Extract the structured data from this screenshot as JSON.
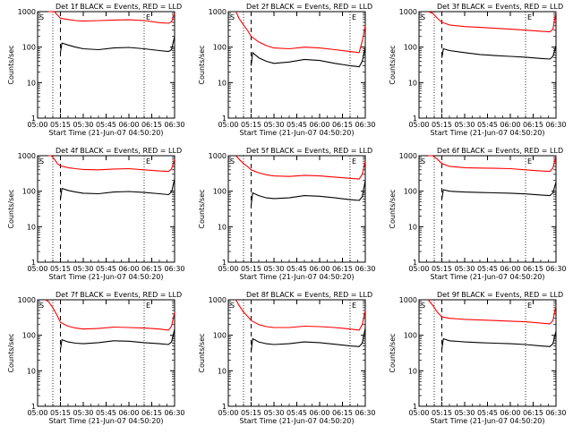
{
  "chart_data": [
    {
      "type": "line",
      "title": "Det 1f BLACK = Events, RED = LLD",
      "xlabel": "Start Time (21-Jun-07 04:50:20)",
      "ylabel": "Counts/sec",
      "yscale": "log",
      "ylim": [
        1,
        1000
      ],
      "xlim": [
        "05:00",
        "06:30"
      ],
      "xticks": [
        "05:00",
        "05:15",
        "05:30",
        "05:45",
        "06:00",
        "06:15",
        "06:30"
      ],
      "yticks": [
        "1",
        "10",
        "100",
        "1000"
      ],
      "markers": {
        "S": "05:10",
        "E": "06:10"
      },
      "dashed": "05:15",
      "series": [
        {
          "color": "#ff0000",
          "x": [
            "05:07",
            "05:09",
            "05:11",
            "05:13",
            "05:15",
            "05:20",
            "05:25",
            "05:30",
            "05:40",
            "05:50",
            "06:00",
            "06:10",
            "06:20",
            "06:26",
            "06:28",
            "06:30"
          ],
          "y": [
            1000,
            1000,
            1000,
            800,
            650,
            600,
            560,
            540,
            560,
            580,
            590,
            560,
            490,
            470,
            520,
            900
          ]
        },
        {
          "color": "#000000",
          "x": [
            "05:15",
            "05:16",
            "05:20",
            "05:25",
            "05:30",
            "05:40",
            "05:50",
            "06:00",
            "06:10",
            "06:20",
            "06:26",
            "06:28",
            "06:30"
          ],
          "y": [
            70,
            130,
            115,
            100,
            90,
            85,
            95,
            98,
            90,
            80,
            75,
            85,
            200
          ]
        }
      ]
    },
    {
      "type": "line",
      "title": "Det 2f BLACK = Events, RED = LLD",
      "xlabel": "Start Time (21-Jun-07 04:50:20)",
      "ylabel": "Counts/sec",
      "yscale": "log",
      "ylim": [
        1,
        1000
      ],
      "xlim": [
        "05:00",
        "06:30"
      ],
      "xticks": [
        "05:00",
        "05:15",
        "05:30",
        "05:45",
        "06:00",
        "06:15",
        "06:30"
      ],
      "yticks": [
        "1",
        "10",
        "100",
        "1000"
      ],
      "markers": {
        "S": "05:10",
        "E": "06:20"
      },
      "dashed": "05:15",
      "series": [
        {
          "color": "#ff0000",
          "x": [
            "05:05",
            "05:07",
            "05:10",
            "05:13",
            "05:15",
            "05:20",
            "05:25",
            "05:30",
            "05:40",
            "05:50",
            "06:00",
            "06:10",
            "06:20",
            "06:26",
            "06:28",
            "06:30"
          ],
          "y": [
            1000,
            650,
            420,
            280,
            200,
            140,
            110,
            95,
            90,
            100,
            95,
            85,
            75,
            70,
            150,
            400
          ]
        },
        {
          "color": "#000000",
          "x": [
            "05:15",
            "05:16",
            "05:20",
            "05:25",
            "05:30",
            "05:40",
            "05:50",
            "06:00",
            "06:10",
            "06:20",
            "06:26",
            "06:28",
            "06:30"
          ],
          "y": [
            30,
            70,
            50,
            40,
            35,
            38,
            45,
            42,
            35,
            30,
            28,
            40,
            100
          ]
        }
      ]
    },
    {
      "type": "line",
      "title": "Det 3f BLACK = Events, RED = LLD",
      "xlabel": "Start Time (21-Jun-07 04:50:20)",
      "ylabel": "Counts/sec",
      "yscale": "log",
      "ylim": [
        1,
        1000
      ],
      "xlim": [
        "05:00",
        "06:30"
      ],
      "xticks": [
        "05:00",
        "05:15",
        "05:30",
        "05:45",
        "06:00",
        "06:15",
        "06:30"
      ],
      "yticks": [
        "1",
        "10",
        "100",
        "1000"
      ],
      "markers": {
        "S": "05:10",
        "E": "06:10"
      },
      "dashed": "05:15",
      "series": [
        {
          "color": "#ff0000",
          "x": [
            "05:06",
            "05:09",
            "05:12",
            "05:15",
            "05:20",
            "05:30",
            "05:40",
            "05:50",
            "06:00",
            "06:10",
            "06:20",
            "06:26",
            "06:28",
            "06:30"
          ],
          "y": [
            1000,
            900,
            650,
            500,
            420,
            380,
            360,
            340,
            320,
            300,
            280,
            270,
            320,
            1000
          ]
        },
        {
          "color": "#000000",
          "x": [
            "05:15",
            "05:16",
            "05:20",
            "05:30",
            "05:40",
            "05:50",
            "06:00",
            "06:10",
            "06:20",
            "06:26",
            "06:28",
            "06:30"
          ],
          "y": [
            50,
            90,
            80,
            70,
            62,
            58,
            55,
            52,
            48,
            46,
            55,
            110
          ]
        }
      ]
    },
    {
      "type": "line",
      "title": "Det 4f BLACK = Events, RED = LLD",
      "xlabel": "Start Time (21-Jun-07 04:50:20)",
      "ylabel": "Counts/sec",
      "yscale": "log",
      "ylim": [
        1,
        1000
      ],
      "xlim": [
        "05:00",
        "06:30"
      ],
      "xticks": [
        "05:00",
        "05:15",
        "05:30",
        "05:45",
        "06:00",
        "06:15",
        "06:30"
      ],
      "yticks": [
        "1",
        "10",
        "100",
        "1000"
      ],
      "markers": {
        "S": "05:10",
        "E": "06:10"
      },
      "dashed": "05:15",
      "series": [
        {
          "color": "#ff0000",
          "x": [
            "05:07",
            "05:09",
            "05:11",
            "05:13",
            "05:15",
            "05:20",
            "05:25",
            "05:30",
            "05:40",
            "05:50",
            "06:00",
            "06:10",
            "06:20",
            "06:26",
            "06:28",
            "06:30"
          ],
          "y": [
            1000,
            1000,
            800,
            600,
            520,
            460,
            430,
            410,
            400,
            420,
            430,
            400,
            370,
            360,
            420,
            800
          ]
        },
        {
          "color": "#000000",
          "x": [
            "05:15",
            "05:16",
            "05:20",
            "05:25",
            "05:30",
            "05:40",
            "05:50",
            "06:00",
            "06:10",
            "06:20",
            "06:26",
            "06:28",
            "06:30"
          ],
          "y": [
            60,
            120,
            105,
            95,
            88,
            85,
            95,
            98,
            92,
            85,
            80,
            95,
            220
          ]
        }
      ]
    },
    {
      "type": "line",
      "title": "Det 5f BLACK = Events, RED = LLD",
      "xlabel": "Start Time (21-Jun-07 04:50:20)",
      "ylabel": "Counts/sec",
      "yscale": "log",
      "ylim": [
        1,
        1000
      ],
      "xlim": [
        "05:00",
        "06:30"
      ],
      "xticks": [
        "05:00",
        "05:15",
        "05:30",
        "05:45",
        "06:00",
        "06:15",
        "06:30"
      ],
      "yticks": [
        "1",
        "10",
        "100",
        "1000"
      ],
      "markers": {
        "S": "05:10",
        "E": "06:20"
      },
      "dashed": "05:15",
      "series": [
        {
          "color": "#ff0000",
          "x": [
            "05:05",
            "05:07",
            "05:10",
            "05:13",
            "05:15",
            "05:20",
            "05:25",
            "05:30",
            "05:40",
            "05:50",
            "06:00",
            "06:10",
            "06:20",
            "06:26",
            "06:28",
            "06:30"
          ],
          "y": [
            1000,
            800,
            600,
            480,
            400,
            330,
            290,
            270,
            260,
            280,
            270,
            250,
            230,
            220,
            300,
            700
          ]
        },
        {
          "color": "#000000",
          "x": [
            "05:15",
            "05:16",
            "05:20",
            "05:25",
            "05:30",
            "05:40",
            "05:50",
            "06:00",
            "06:10",
            "06:20",
            "06:26",
            "06:28",
            "06:30"
          ],
          "y": [
            40,
            90,
            75,
            65,
            62,
            65,
            75,
            72,
            65,
            58,
            55,
            70,
            200
          ]
        }
      ]
    },
    {
      "type": "line",
      "title": "Det 6f BLACK = Events, RED = LLD",
      "xlabel": "Start Time (21-Jun-07 04:50:20)",
      "ylabel": "Counts/sec",
      "yscale": "log",
      "ylim": [
        1,
        1000
      ],
      "xlim": [
        "05:00",
        "06:30"
      ],
      "xticks": [
        "05:00",
        "05:15",
        "05:30",
        "05:45",
        "06:00",
        "06:15",
        "06:30"
      ],
      "yticks": [
        "1",
        "10",
        "100",
        "1000"
      ],
      "markers": {
        "S": "05:10",
        "E": "06:10"
      },
      "dashed": "05:15",
      "series": [
        {
          "color": "#ff0000",
          "x": [
            "05:06",
            "05:09",
            "05:12",
            "05:15",
            "05:20",
            "05:30",
            "05:40",
            "05:50",
            "06:00",
            "06:10",
            "06:20",
            "06:26",
            "06:28",
            "06:30"
          ],
          "y": [
            1000,
            1000,
            800,
            600,
            500,
            460,
            450,
            440,
            430,
            400,
            370,
            360,
            450,
            1000
          ]
        },
        {
          "color": "#000000",
          "x": [
            "05:15",
            "05:16",
            "05:20",
            "05:30",
            "05:40",
            "05:50",
            "06:00",
            "06:10",
            "06:20",
            "06:26",
            "06:28",
            "06:30"
          ],
          "y": [
            60,
            110,
            100,
            95,
            92,
            90,
            88,
            84,
            78,
            75,
            90,
            180
          ]
        }
      ]
    },
    {
      "type": "line",
      "title": "Det 7f BLACK = Events, RED = LLD",
      "xlabel": "Start Time (21-Jun-07 04:50:20)",
      "ylabel": "Counts/sec",
      "yscale": "log",
      "ylim": [
        1,
        1000
      ],
      "xlim": [
        "05:00",
        "06:30"
      ],
      "xticks": [
        "05:00",
        "05:15",
        "05:30",
        "05:45",
        "06:00",
        "06:15",
        "06:30"
      ],
      "yticks": [
        "1",
        "10",
        "100",
        "1000"
      ],
      "markers": {
        "S": "05:10",
        "E": "06:10"
      },
      "dashed": "05:15",
      "series": [
        {
          "color": "#ff0000",
          "x": [
            "05:05",
            "05:07",
            "05:10",
            "05:13",
            "05:15",
            "05:20",
            "05:25",
            "05:30",
            "05:40",
            "05:50",
            "06:00",
            "06:10",
            "06:20",
            "06:26",
            "06:28",
            "06:30"
          ],
          "y": [
            1000,
            900,
            600,
            350,
            230,
            180,
            160,
            150,
            155,
            170,
            165,
            160,
            150,
            140,
            180,
            450
          ]
        },
        {
          "color": "#000000",
          "x": [
            "05:15",
            "05:16",
            "05:20",
            "05:25",
            "05:30",
            "05:40",
            "05:50",
            "06:00",
            "06:10",
            "06:20",
            "06:26",
            "06:28",
            "06:30"
          ],
          "y": [
            40,
            75,
            65,
            60,
            58,
            62,
            70,
            68,
            62,
            58,
            55,
            65,
            150
          ]
        }
      ]
    },
    {
      "type": "line",
      "title": "Det 8f BLACK = Events, RED = LLD",
      "xlabel": "Start Time (21-Jun-07 04:50:20)",
      "ylabel": "Counts/sec",
      "yscale": "log",
      "ylim": [
        1,
        1000
      ],
      "xlim": [
        "05:00",
        "06:30"
      ],
      "xticks": [
        "05:00",
        "05:15",
        "05:30",
        "05:45",
        "06:00",
        "06:15",
        "06:30"
      ],
      "yticks": [
        "1",
        "10",
        "100",
        "1000"
      ],
      "markers": {
        "S": "05:10",
        "E": "06:20"
      },
      "dashed": "05:15",
      "series": [
        {
          "color": "#ff0000",
          "x": [
            "05:05",
            "05:07",
            "05:10",
            "05:13",
            "05:15",
            "05:20",
            "05:25",
            "05:30",
            "05:40",
            "05:50",
            "06:00",
            "06:10",
            "06:20",
            "06:26",
            "06:28",
            "06:30"
          ],
          "y": [
            1000,
            700,
            450,
            330,
            260,
            200,
            175,
            165,
            165,
            180,
            175,
            165,
            150,
            140,
            200,
            500
          ]
        },
        {
          "color": "#000000",
          "x": [
            "05:15",
            "05:16",
            "05:20",
            "05:25",
            "05:30",
            "05:40",
            "05:50",
            "06:00",
            "06:10",
            "06:20",
            "06:26",
            "06:28",
            "06:30"
          ],
          "y": [
            35,
            80,
            65,
            58,
            55,
            58,
            65,
            62,
            56,
            50,
            48,
            60,
            160
          ]
        }
      ]
    },
    {
      "type": "line",
      "title": "Det 9f BLACK = Events, RED = LLD",
      "xlabel": "Start Time (21-Jun-07 04:50:20)",
      "ylabel": "Counts/sec",
      "yscale": "log",
      "ylim": [
        1,
        1000
      ],
      "xlim": [
        "05:00",
        "06:30"
      ],
      "xticks": [
        "05:00",
        "05:15",
        "05:30",
        "05:45",
        "06:00",
        "06:15",
        "06:30"
      ],
      "yticks": [
        "1",
        "10",
        "100",
        "1000"
      ],
      "markers": {
        "S": "05:10",
        "E": "06:10"
      },
      "dashed": "05:15",
      "series": [
        {
          "color": "#ff0000",
          "x": [
            "05:06",
            "05:09",
            "05:12",
            "05:15",
            "05:20",
            "05:30",
            "05:40",
            "05:50",
            "06:00",
            "06:10",
            "06:20",
            "06:26",
            "06:28",
            "06:30"
          ],
          "y": [
            1000,
            700,
            450,
            330,
            300,
            280,
            270,
            260,
            250,
            240,
            220,
            210,
            260,
            700
          ]
        },
        {
          "color": "#000000",
          "x": [
            "05:15",
            "05:16",
            "05:20",
            "05:30",
            "05:40",
            "05:50",
            "06:00",
            "06:10",
            "06:20",
            "06:26",
            "06:28",
            "06:30"
          ],
          "y": [
            40,
            80,
            70,
            65,
            62,
            60,
            58,
            55,
            50,
            48,
            58,
            130
          ]
        }
      ]
    }
  ]
}
